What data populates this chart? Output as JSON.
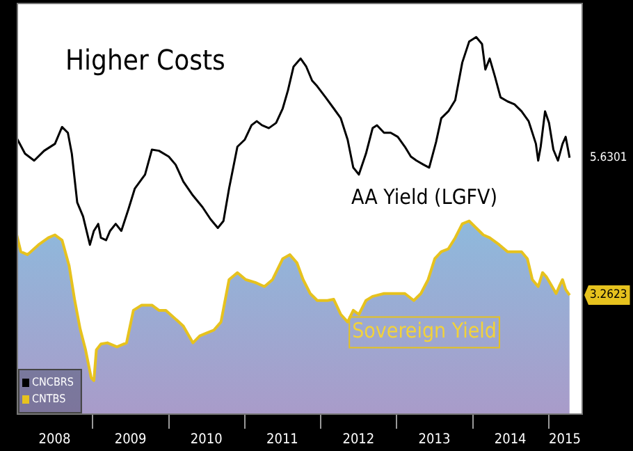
{
  "chart_data": {
    "type": "line",
    "xlim": [
      "2008-01-01",
      "2015-06-15"
    ],
    "ylim": [
      1.2,
      8.3
    ],
    "xticks": [
      {
        "value": "2009-01-01",
        "label": null
      },
      {
        "value": "2010-01-01",
        "label": null
      },
      {
        "value": "2011-01-01",
        "label": null
      },
      {
        "value": "2012-01-01",
        "label": null
      },
      {
        "value": "2013-01-01",
        "label": null
      },
      {
        "value": "2014-01-01",
        "label": null
      },
      {
        "value": "2015-01-01",
        "label": null
      },
      {
        "value": "2008-07-01",
        "label": "2008"
      },
      {
        "value": "2009-07-01",
        "label": "2009"
      },
      {
        "value": "2010-07-01",
        "label": "2010"
      },
      {
        "value": "2011-07-01",
        "label": "2011"
      },
      {
        "value": "2012-07-01",
        "label": "2012"
      },
      {
        "value": "2013-07-01",
        "label": "2013"
      },
      {
        "value": "2014-07-01",
        "label": "2014"
      },
      {
        "value": "2015-03-20",
        "label": "2015"
      }
    ],
    "grid": false,
    "legend": "bottom left",
    "marker": "none",
    "line_style": "solid",
    "annotations": [
      "Higher Costs",
      "AA Yield (LGFV)",
      "Sovereign Yield"
    ],
    "series": [
      {
        "name": "CNCBRS",
        "type": "line",
        "color": "#000000",
        "x": [
          "2008-01-01",
          "2008-02-10",
          "2008-03-25",
          "2008-05-12",
          "2008-07-03",
          "2008-08-06",
          "2008-09-03",
          "2008-09-22",
          "2008-10-18",
          "2008-11-15",
          "2008-12-18",
          "2009-01-06",
          "2009-01-27",
          "2009-02-09",
          "2009-03-06",
          "2009-03-25",
          "2009-04-21",
          "2009-05-18",
          "2009-06-21",
          "2009-07-22",
          "2009-09-09",
          "2009-10-12",
          "2009-11-15",
          "2010-01-01",
          "2010-02-03",
          "2010-03-12",
          "2010-04-27",
          "2010-06-12",
          "2010-07-21",
          "2010-08-25",
          "2010-09-21",
          "2010-10-18",
          "2010-11-27",
          "2011-01-01",
          "2011-02-03",
          "2011-02-28",
          "2011-03-25",
          "2011-04-27",
          "2011-06-01",
          "2011-07-03",
          "2011-07-28",
          "2011-08-24",
          "2011-09-27",
          "2011-10-24",
          "2011-11-21",
          "2011-12-16",
          "2012-01-25",
          "2012-03-04",
          "2012-04-07",
          "2012-05-10",
          "2012-06-06",
          "2012-07-03",
          "2012-08-06",
          "2012-09-07",
          "2012-09-28",
          "2012-11-01",
          "2012-12-03",
          "2013-01-06",
          "2013-02-09",
          "2013-03-10",
          "2013-04-06",
          "2013-05-10",
          "2013-06-06",
          "2013-07-09",
          "2013-08-03",
          "2013-09-06",
          "2013-10-09",
          "2013-11-12",
          "2013-12-15",
          "2014-01-18",
          "2014-02-15",
          "2014-03-03",
          "2014-03-24",
          "2014-04-18",
          "2014-05-15",
          "2014-06-18",
          "2014-07-21",
          "2014-08-24",
          "2014-09-27",
          "2014-11-01",
          "2014-11-12",
          "2014-11-24",
          "2014-12-15",
          "2015-01-03",
          "2015-01-24",
          "2015-02-15",
          "2015-03-09",
          "2015-03-24",
          "2015-04-12"
        ],
        "values": [
          5.97,
          5.7,
          5.58,
          5.75,
          5.87,
          6.16,
          6.06,
          5.7,
          4.86,
          4.62,
          4.13,
          4.37,
          4.49,
          4.25,
          4.21,
          4.37,
          4.49,
          4.37,
          4.74,
          5.1,
          5.34,
          5.77,
          5.75,
          5.65,
          5.51,
          5.22,
          4.98,
          4.78,
          4.57,
          4.42,
          4.54,
          5.1,
          5.82,
          5.94,
          6.19,
          6.26,
          6.19,
          6.14,
          6.23,
          6.48,
          6.79,
          7.2,
          7.34,
          7.2,
          6.96,
          6.86,
          6.67,
          6.48,
          6.31,
          5.94,
          5.46,
          5.34,
          5.7,
          6.14,
          6.19,
          6.06,
          6.06,
          5.99,
          5.82,
          5.65,
          5.58,
          5.51,
          5.46,
          5.9,
          6.31,
          6.43,
          6.62,
          7.27,
          7.63,
          7.71,
          7.59,
          7.15,
          7.34,
          7.03,
          6.67,
          6.6,
          6.55,
          6.43,
          6.26,
          5.87,
          5.58,
          5.82,
          6.43,
          6.23,
          5.77,
          5.58,
          5.87,
          5.99,
          5.6301
        ],
        "value_labels": [
          null,
          null,
          null,
          null,
          null,
          null,
          null,
          null,
          null,
          null,
          null,
          null,
          null,
          null,
          null,
          null,
          null,
          null,
          null,
          null,
          null,
          null,
          null,
          null,
          null,
          null,
          null,
          null,
          null,
          null,
          null,
          null,
          null,
          null,
          null,
          null,
          null,
          null,
          null,
          null,
          null,
          null,
          null,
          null,
          null,
          null,
          null,
          null,
          null,
          null,
          null,
          null,
          null,
          null,
          null,
          null,
          null,
          null,
          null,
          null,
          null,
          null,
          null,
          null,
          null,
          null,
          null,
          null,
          null,
          null,
          null,
          null,
          null,
          null,
          null,
          null,
          null,
          null,
          null,
          null,
          null,
          null,
          null,
          null,
          null,
          null,
          null,
          null,
          "5.6301"
        ]
      },
      {
        "name": "CNTBS",
        "type": "area",
        "color": "#e6c21e",
        "x": [
          "2008-01-01",
          "2008-01-21",
          "2008-02-22",
          "2008-04-15",
          "2008-06-01",
          "2008-07-03",
          "2008-08-06",
          "2008-09-09",
          "2008-10-06",
          "2008-11-01",
          "2008-11-27",
          "2008-12-24",
          "2009-01-06",
          "2009-01-18",
          "2009-02-09",
          "2009-03-12",
          "2009-04-27",
          "2009-06-12",
          "2009-07-15",
          "2009-08-24",
          "2009-10-12",
          "2009-11-15",
          "2009-12-18",
          "2010-02-03",
          "2010-03-12",
          "2010-04-27",
          "2010-05-30",
          "2010-07-03",
          "2010-08-06",
          "2010-09-09",
          "2010-10-18",
          "2010-11-27",
          "2011-01-06",
          "2011-02-21",
          "2011-04-06",
          "2011-05-15",
          "2011-07-03",
          "2011-08-06",
          "2011-09-09",
          "2011-10-09",
          "2011-11-12",
          "2011-12-16",
          "2012-02-03",
          "2012-03-04",
          "2012-04-07",
          "2012-05-10",
          "2012-06-06",
          "2012-07-03",
          "2012-08-06",
          "2012-09-07",
          "2012-11-01",
          "2012-12-15",
          "2013-02-09",
          "2013-03-24",
          "2013-04-27",
          "2013-06-01",
          "2013-07-03",
          "2013-08-03",
          "2013-09-06",
          "2013-10-09",
          "2013-11-12",
          "2013-12-15",
          "2014-01-18",
          "2014-02-21",
          "2014-03-24",
          "2014-05-09",
          "2014-06-18",
          "2014-07-15",
          "2014-08-24",
          "2014-09-21",
          "2014-10-15",
          "2014-11-12",
          "2014-12-03",
          "2014-12-21",
          "2015-01-18",
          "2015-02-06",
          "2015-02-21",
          "2015-03-09",
          "2015-03-24",
          "2015-04-12"
        ],
        "values": [
          4.3,
          4.01,
          3.96,
          4.13,
          4.25,
          4.3,
          4.21,
          3.77,
          3.17,
          2.68,
          2.32,
          1.84,
          1.79,
          2.32,
          2.42,
          2.44,
          2.37,
          2.44,
          3.0,
          3.09,
          3.09,
          3.0,
          3.0,
          2.85,
          2.73,
          2.44,
          2.56,
          2.61,
          2.66,
          2.8,
          3.53,
          3.65,
          3.53,
          3.48,
          3.41,
          3.53,
          3.89,
          3.96,
          3.82,
          3.53,
          3.29,
          3.17,
          3.17,
          3.19,
          2.93,
          2.8,
          3.0,
          2.93,
          3.17,
          3.24,
          3.29,
          3.29,
          3.29,
          3.17,
          3.29,
          3.53,
          3.89,
          4.01,
          4.06,
          4.25,
          4.49,
          4.54,
          4.42,
          4.3,
          4.25,
          4.13,
          4.01,
          4.01,
          4.01,
          3.89,
          3.53,
          3.41,
          3.65,
          3.58,
          3.41,
          3.29,
          3.41,
          3.53,
          3.36,
          3.2623
        ],
        "value_labels": [
          null,
          null,
          null,
          null,
          null,
          null,
          null,
          null,
          null,
          null,
          null,
          null,
          null,
          null,
          null,
          null,
          null,
          null,
          null,
          null,
          null,
          null,
          null,
          null,
          null,
          null,
          null,
          null,
          null,
          null,
          null,
          null,
          null,
          null,
          null,
          null,
          null,
          null,
          null,
          null,
          null,
          null,
          null,
          null,
          null,
          null,
          null,
          null,
          null,
          null,
          null,
          null,
          null,
          null,
          null,
          null,
          null,
          null,
          null,
          null,
          null,
          null,
          null,
          null,
          null,
          null,
          null,
          null,
          null,
          null,
          null,
          null,
          null,
          null,
          null,
          null,
          null,
          null,
          null,
          "3.2623"
        ]
      }
    ]
  }
}
